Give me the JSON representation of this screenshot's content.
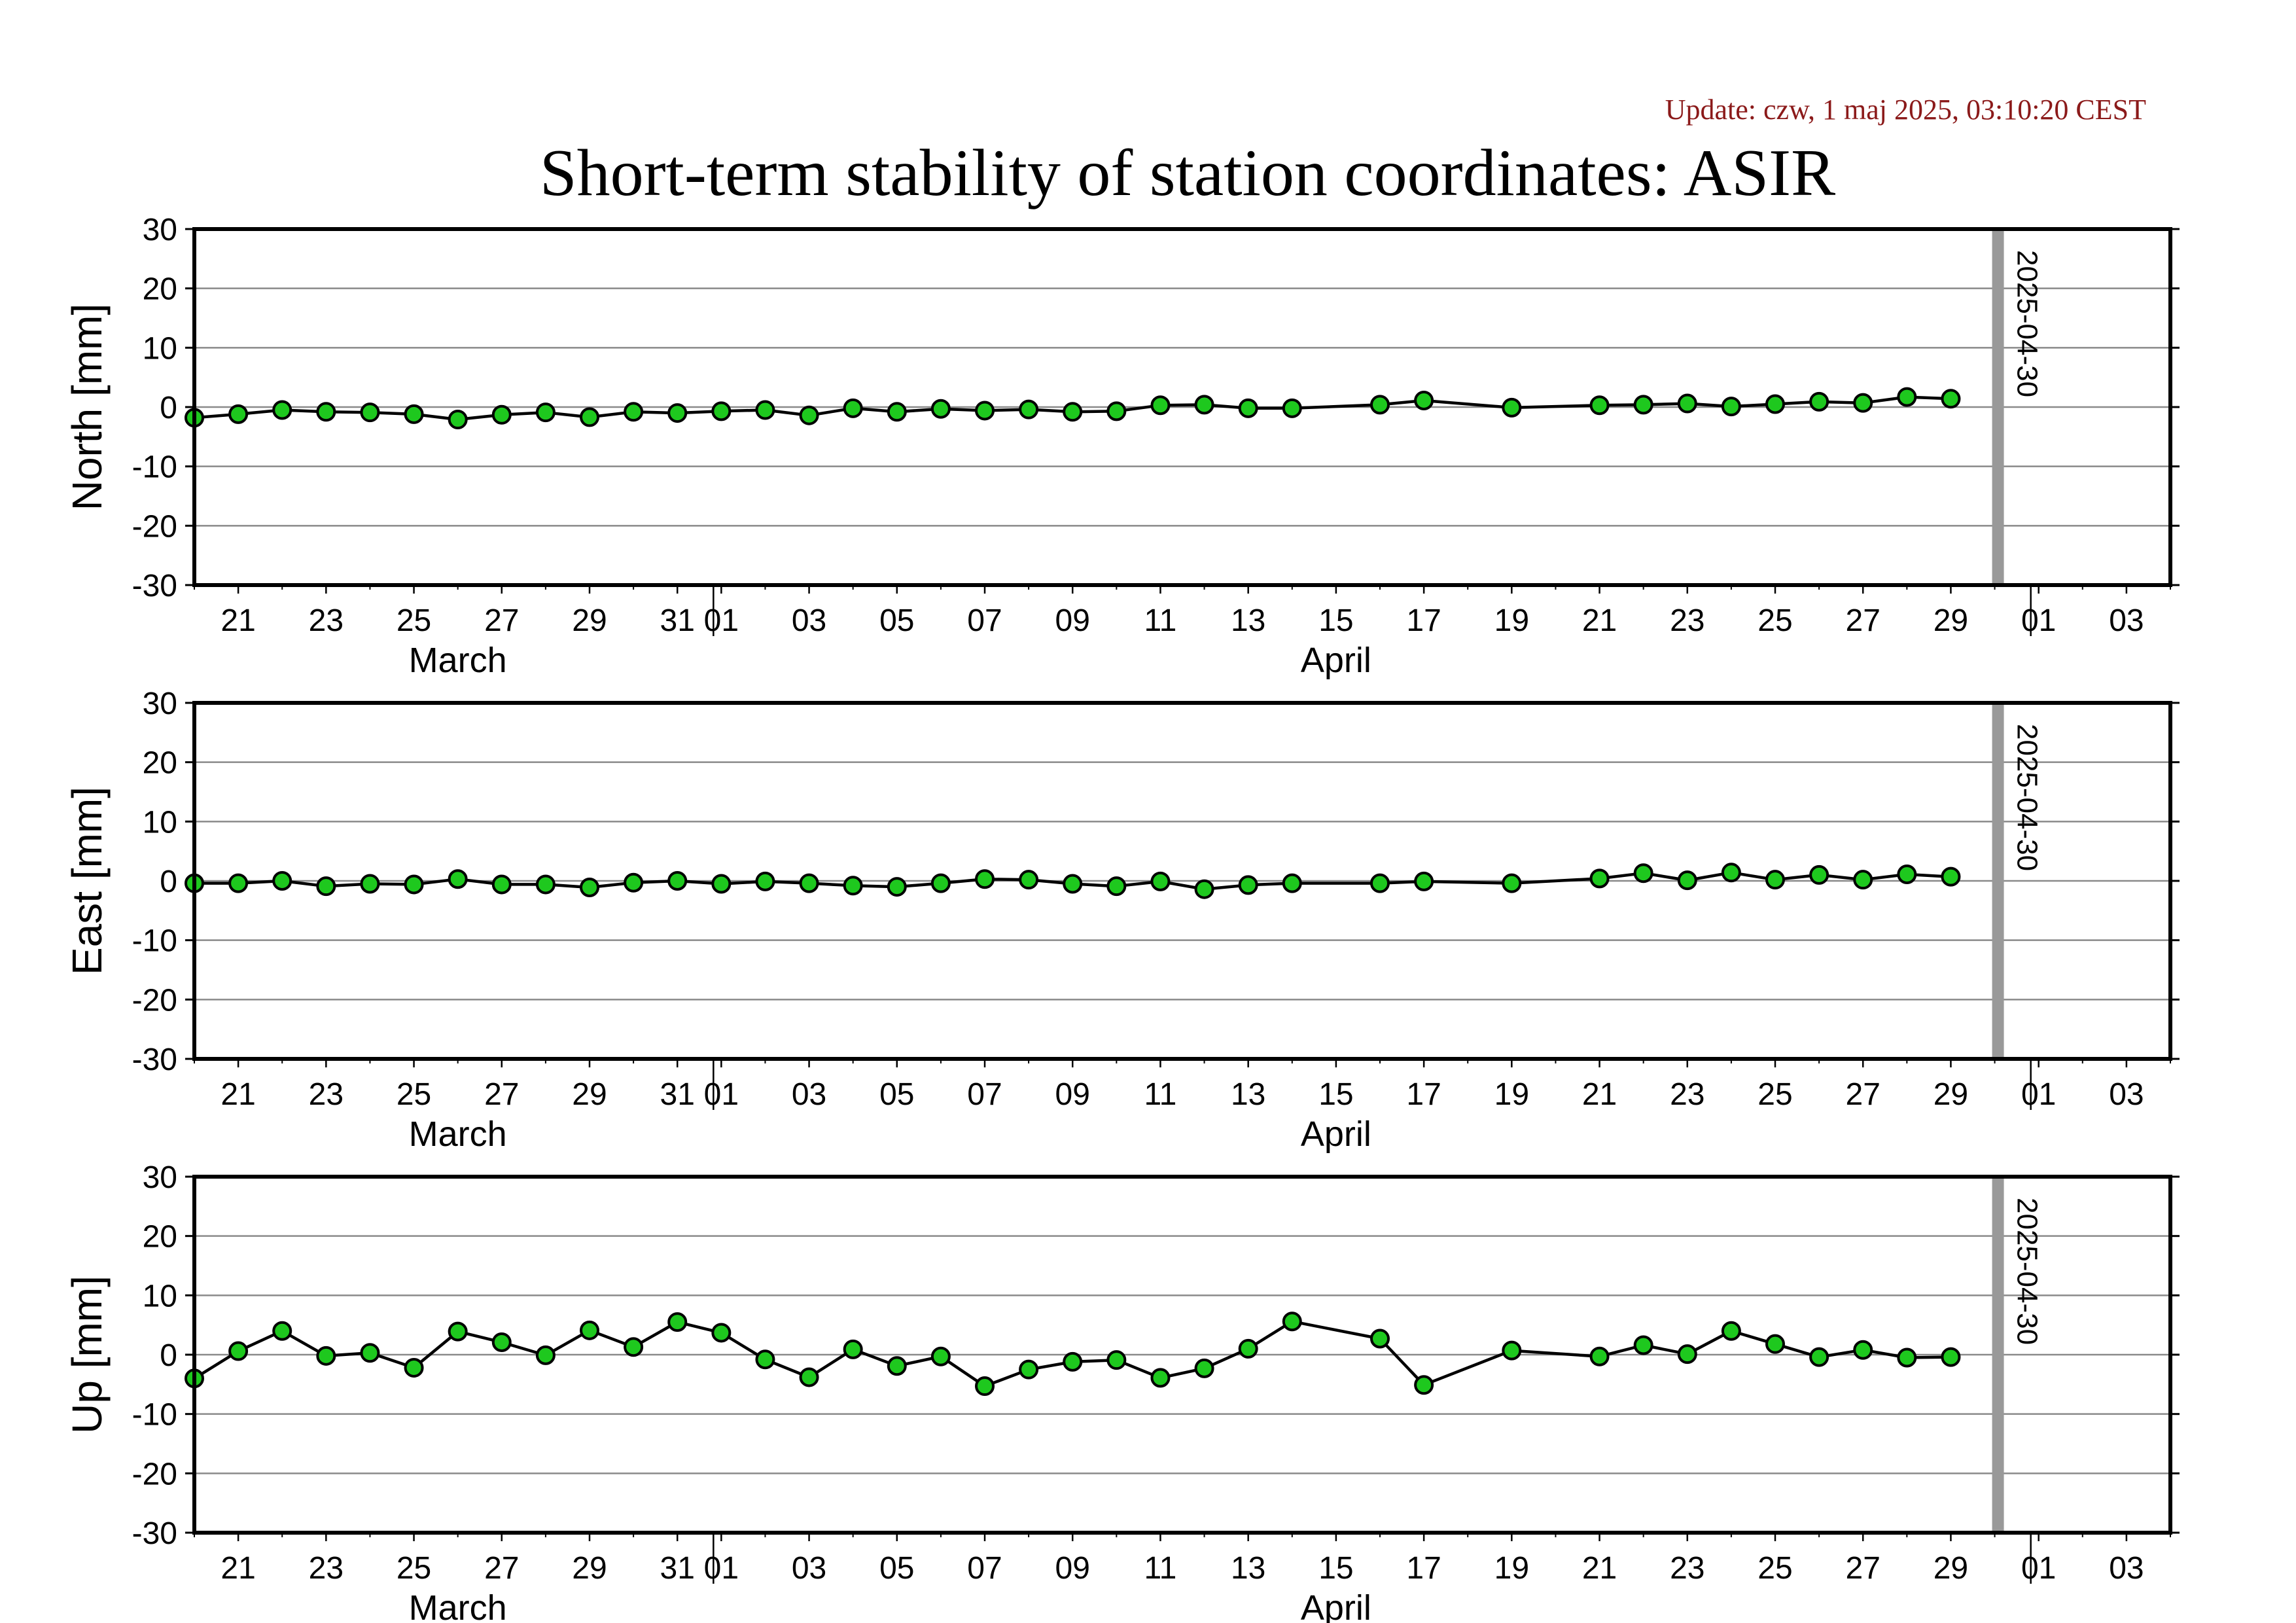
{
  "header": {
    "update_text": "Update: czw, 1 maj 2025, 03:10:20 CEST",
    "title": "Short-term stability of station coordinates: ASIR"
  },
  "chart_data": {
    "type": "line",
    "x_unit": "date",
    "marker_date": "2025-04-30",
    "marker_label": "2025-04-30",
    "marker_color": "#999999",
    "point_color": "#1ec81e",
    "line_color": "#000000",
    "grid": true,
    "x_range": [
      "2025-03-20",
      "2025-05-04"
    ],
    "x_tick_labels": [
      {
        "date": "2025-03-21",
        "label": "21"
      },
      {
        "date": "2025-03-23",
        "label": "23"
      },
      {
        "date": "2025-03-25",
        "label": "25"
      },
      {
        "date": "2025-03-27",
        "label": "27"
      },
      {
        "date": "2025-03-29",
        "label": "29"
      },
      {
        "date": "2025-03-31",
        "label": "31"
      },
      {
        "date": "2025-04-01",
        "label": "01"
      },
      {
        "date": "2025-04-03",
        "label": "03"
      },
      {
        "date": "2025-04-05",
        "label": "05"
      },
      {
        "date": "2025-04-07",
        "label": "07"
      },
      {
        "date": "2025-04-09",
        "label": "09"
      },
      {
        "date": "2025-04-11",
        "label": "11"
      },
      {
        "date": "2025-04-13",
        "label": "13"
      },
      {
        "date": "2025-04-15",
        "label": "15"
      },
      {
        "date": "2025-04-17",
        "label": "17"
      },
      {
        "date": "2025-04-19",
        "label": "19"
      },
      {
        "date": "2025-04-21",
        "label": "21"
      },
      {
        "date": "2025-04-23",
        "label": "23"
      },
      {
        "date": "2025-04-25",
        "label": "25"
      },
      {
        "date": "2025-04-27",
        "label": "27"
      },
      {
        "date": "2025-04-29",
        "label": "29"
      },
      {
        "date": "2025-05-01",
        "label": "01"
      },
      {
        "date": "2025-05-03",
        "label": "03"
      }
    ],
    "month_labels": [
      {
        "date": "2025-03-26",
        "label": "March"
      },
      {
        "date": "2025-04-15",
        "label": "April"
      }
    ],
    "month_boundaries": [
      "2025-04-01",
      "2025-05-01"
    ],
    "panels": [
      {
        "ylabel": "North [mm]",
        "ylim": [
          -30,
          30
        ],
        "yticks": [
          30,
          20,
          10,
          0,
          -10,
          -20,
          -30
        ],
        "points": [
          [
            "2025-03-20",
            -1.8
          ],
          [
            "2025-03-21",
            -1.2
          ],
          [
            "2025-03-22",
            -0.5
          ],
          [
            "2025-03-23",
            -0.8
          ],
          [
            "2025-03-24",
            -0.9
          ],
          [
            "2025-03-25",
            -1.2
          ],
          [
            "2025-03-26",
            -2.1
          ],
          [
            "2025-03-27",
            -1.3
          ],
          [
            "2025-03-28",
            -0.9
          ],
          [
            "2025-03-29",
            -1.7
          ],
          [
            "2025-03-30",
            -0.8
          ],
          [
            "2025-03-31",
            -1.0
          ],
          [
            "2025-04-01",
            -0.7
          ],
          [
            "2025-04-02",
            -0.5
          ],
          [
            "2025-04-03",
            -1.4
          ],
          [
            "2025-04-04",
            -0.2
          ],
          [
            "2025-04-05",
            -0.8
          ],
          [
            "2025-04-06",
            -0.3
          ],
          [
            "2025-04-07",
            -0.6
          ],
          [
            "2025-04-08",
            -0.4
          ],
          [
            "2025-04-09",
            -0.8
          ],
          [
            "2025-04-10",
            -0.7
          ],
          [
            "2025-04-11",
            0.3
          ],
          [
            "2025-04-12",
            0.4
          ],
          [
            "2025-04-13",
            -0.2
          ],
          [
            "2025-04-14",
            -0.2
          ],
          [
            "2025-04-16",
            0.4
          ],
          [
            "2025-04-17",
            1.1
          ],
          [
            "2025-04-19",
            -0.1
          ],
          [
            "2025-04-21",
            0.3
          ],
          [
            "2025-04-22",
            0.4
          ],
          [
            "2025-04-23",
            0.6
          ],
          [
            "2025-04-24",
            0.1
          ],
          [
            "2025-04-25",
            0.5
          ],
          [
            "2025-04-26",
            0.9
          ],
          [
            "2025-04-27",
            0.7
          ],
          [
            "2025-04-28",
            1.7
          ],
          [
            "2025-04-29",
            1.4
          ]
        ]
      },
      {
        "ylabel": "East [mm]",
        "ylim": [
          -30,
          30
        ],
        "yticks": [
          30,
          20,
          10,
          0,
          -10,
          -20,
          -30
        ],
        "points": [
          [
            "2025-03-20",
            -0.4
          ],
          [
            "2025-03-21",
            -0.4
          ],
          [
            "2025-03-22",
            0.0
          ],
          [
            "2025-03-23",
            -0.9
          ],
          [
            "2025-03-24",
            -0.5
          ],
          [
            "2025-03-25",
            -0.6
          ],
          [
            "2025-03-26",
            0.3
          ],
          [
            "2025-03-27",
            -0.6
          ],
          [
            "2025-03-28",
            -0.6
          ],
          [
            "2025-03-29",
            -1.1
          ],
          [
            "2025-03-30",
            -0.3
          ],
          [
            "2025-03-31",
            0.0
          ],
          [
            "2025-04-01",
            -0.5
          ],
          [
            "2025-04-02",
            -0.1
          ],
          [
            "2025-04-03",
            -0.4
          ],
          [
            "2025-04-04",
            -0.8
          ],
          [
            "2025-04-05",
            -1.0
          ],
          [
            "2025-04-06",
            -0.4
          ],
          [
            "2025-04-07",
            0.3
          ],
          [
            "2025-04-08",
            0.2
          ],
          [
            "2025-04-09",
            -0.5
          ],
          [
            "2025-04-10",
            -0.9
          ],
          [
            "2025-04-11",
            -0.1
          ],
          [
            "2025-04-12",
            -1.4
          ],
          [
            "2025-04-13",
            -0.7
          ],
          [
            "2025-04-14",
            -0.4
          ],
          [
            "2025-04-16",
            -0.4
          ],
          [
            "2025-04-17",
            -0.1
          ],
          [
            "2025-04-19",
            -0.4
          ],
          [
            "2025-04-21",
            0.4
          ],
          [
            "2025-04-22",
            1.3
          ],
          [
            "2025-04-23",
            0.1
          ],
          [
            "2025-04-24",
            1.4
          ],
          [
            "2025-04-25",
            0.2
          ],
          [
            "2025-04-26",
            1.0
          ],
          [
            "2025-04-27",
            0.2
          ],
          [
            "2025-04-28",
            1.1
          ],
          [
            "2025-04-29",
            0.7
          ]
        ]
      },
      {
        "ylabel": "Up [mm]",
        "ylim": [
          -30,
          30
        ],
        "yticks": [
          30,
          20,
          10,
          0,
          -10,
          -20,
          -30
        ],
        "points": [
          [
            "2025-03-20",
            -4.0
          ],
          [
            "2025-03-21",
            0.6
          ],
          [
            "2025-03-22",
            4.0
          ],
          [
            "2025-03-23",
            -0.2
          ],
          [
            "2025-03-24",
            0.3
          ],
          [
            "2025-03-25",
            -2.2
          ],
          [
            "2025-03-26",
            3.9
          ],
          [
            "2025-03-27",
            2.1
          ],
          [
            "2025-03-28",
            -0.1
          ],
          [
            "2025-03-29",
            4.1
          ],
          [
            "2025-03-30",
            1.3
          ],
          [
            "2025-03-31",
            5.5
          ],
          [
            "2025-04-01",
            3.7
          ],
          [
            "2025-04-02",
            -0.8
          ],
          [
            "2025-04-03",
            -3.8
          ],
          [
            "2025-04-04",
            0.9
          ],
          [
            "2025-04-05",
            -1.9
          ],
          [
            "2025-04-06",
            -0.3
          ],
          [
            "2025-04-07",
            -5.3
          ],
          [
            "2025-04-08",
            -2.5
          ],
          [
            "2025-04-09",
            -1.2
          ],
          [
            "2025-04-10",
            -0.9
          ],
          [
            "2025-04-11",
            -3.9
          ],
          [
            "2025-04-12",
            -2.3
          ],
          [
            "2025-04-13",
            1.0
          ],
          [
            "2025-04-14",
            5.6
          ],
          [
            "2025-04-16",
            2.7
          ],
          [
            "2025-04-17",
            -5.1
          ],
          [
            "2025-04-19",
            0.7
          ],
          [
            "2025-04-21",
            -0.3
          ],
          [
            "2025-04-22",
            1.6
          ],
          [
            "2025-04-23",
            0.1
          ],
          [
            "2025-04-24",
            4.0
          ],
          [
            "2025-04-25",
            1.8
          ],
          [
            "2025-04-26",
            -0.4
          ],
          [
            "2025-04-27",
            0.8
          ],
          [
            "2025-04-28",
            -0.5
          ],
          [
            "2025-04-29",
            -0.4
          ]
        ]
      }
    ]
  }
}
